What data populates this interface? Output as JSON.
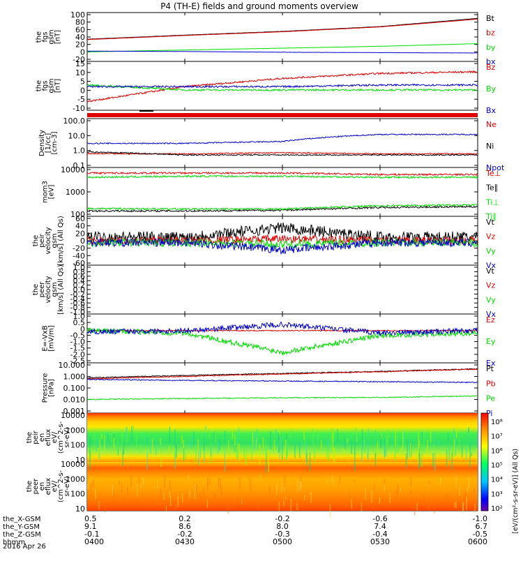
{
  "title": "P4 (TH-E) fields and ground moments overview",
  "colors": {
    "black": "#000000",
    "red": "#e00000",
    "green": "#00dd00",
    "blue": "#0000cc"
  },
  "panels": [
    {
      "id": "fgs-bt",
      "ylabel": [
        "the",
        "fgs",
        "gsm",
        "[nT]"
      ],
      "ticks": [
        "100",
        "80",
        "60",
        "40",
        "20",
        "0",
        "-20"
      ],
      "legend": [
        {
          "label": "Bt",
          "color": "#000000"
        },
        {
          "label": "bz",
          "color": "#e00000"
        },
        {
          "label": "by",
          "color": "#00dd00"
        },
        {
          "label": "bx",
          "color": "#0000cc"
        }
      ]
    },
    {
      "id": "fgs-b",
      "ylabel": [
        "the",
        "fgs",
        "gsm",
        "[nT]"
      ],
      "ticks": [
        "15",
        "10",
        "5",
        "0",
        "-5",
        "-10"
      ],
      "legend": [
        {
          "label": "Bz",
          "color": "#e00000"
        },
        {
          "label": "By",
          "color": "#00dd00"
        },
        {
          "label": "Bx",
          "color": "#0000cc"
        }
      ]
    },
    {
      "id": "density",
      "ylabel": [
        "Density",
        "[1/cc]",
        "[cm-3]"
      ],
      "ticks": [
        "100.0",
        "10.0",
        "1.0",
        "0.1"
      ],
      "legend": [
        {
          "label": "Ne",
          "color": "#e00000"
        },
        {
          "label": "Ni",
          "color": "#000000"
        },
        {
          "label": "Npot",
          "color": "#0000cc"
        }
      ]
    },
    {
      "id": "temp",
      "ylabel": [
        "mom3",
        "[eV]"
      ],
      "ticks": [
        "10000",
        "1000",
        "100"
      ],
      "legend": [
        {
          "label": "Te⊥",
          "color": "#e00000"
        },
        {
          "label": "Te∥",
          "color": "#000000"
        },
        {
          "label": "Ti⊥",
          "color": "#00dd00"
        },
        {
          "label": "Ti∥",
          "color": "#00dd00"
        }
      ]
    },
    {
      "id": "peir-vel",
      "ylabel": [
        "the",
        "peir",
        "velocity",
        "gsm",
        "[km/s] (All Qs)"
      ],
      "ticks": [
        "60",
        "40",
        "20",
        "0",
        "-20",
        "-40",
        "-60"
      ],
      "legend": [
        {
          "label": "Vt",
          "color": "#000000"
        },
        {
          "label": "Vz",
          "color": "#e00000"
        },
        {
          "label": "Vy",
          "color": "#00dd00"
        },
        {
          "label": "Vx",
          "color": "#0000cc"
        }
      ]
    },
    {
      "id": "peer-vel",
      "ylabel": [
        "the",
        "peer",
        "velocity",
        "gsm",
        "[km/s] (All Qs)"
      ],
      "ticks": [
        "1.0",
        "0.8",
        "0.6",
        "0.4",
        "0.2",
        "0.0",
        "-0.2",
        "-0.4",
        "-0.6",
        "-0.8",
        "-1.0"
      ],
      "legend": [
        {
          "label": "Vt",
          "color": "#000000"
        },
        {
          "label": "Vz",
          "color": "#e00000"
        },
        {
          "label": "Vy",
          "color": "#00dd00"
        },
        {
          "label": "Vx",
          "color": "#0000cc"
        }
      ]
    },
    {
      "id": "efield",
      "ylabel": [
        "E=-VxB",
        "[mV/m]"
      ],
      "ticks": [
        "1.0",
        "0.5",
        "0",
        "-0.5",
        "-1.0",
        "-1.5",
        "-2.0",
        "-2.5"
      ],
      "legend": [
        {
          "label": "Ez",
          "color": "#e00000"
        },
        {
          "label": "Ey",
          "color": "#00dd00"
        },
        {
          "label": "Ex",
          "color": "#0000cc"
        }
      ]
    },
    {
      "id": "pressure",
      "ylabel": [
        "Pressure",
        "[nPa]"
      ],
      "ticks": [
        "10.000",
        "1.000",
        "0.100",
        "0.010",
        "0.001"
      ],
      "legend": [
        {
          "label": "Pt",
          "color": "#000000"
        },
        {
          "label": "Pb",
          "color": "#e00000"
        },
        {
          "label": "Pe",
          "color": "#00dd00"
        },
        {
          "label": "Pi",
          "color": "#0000cc"
        }
      ]
    },
    {
      "id": "peir-en",
      "ylabel": [
        "the",
        "peir",
        "en",
        "eflux",
        "eV/",
        "(cm^2-s-",
        "sr-eV)"
      ],
      "ticks": [
        "10000",
        "1000",
        "100",
        "10"
      ],
      "legend": []
    },
    {
      "id": "peer-en",
      "ylabel": [
        "the",
        "peer",
        "en",
        "eflux",
        "eV/",
        "(cm^2-s-",
        "sr-eV)"
      ],
      "ticks": [
        "10000",
        "1000",
        "100",
        "10"
      ],
      "legend": []
    }
  ],
  "colorbar": {
    "ticks": [
      "10⁸",
      "10⁷",
      "10⁶",
      "10⁵",
      "10⁴",
      "10³",
      "10²"
    ],
    "label": "[eV/(cm²-s-sr-eV)] (All Qs)"
  },
  "xaxis": {
    "rows": [
      {
        "label": "the_X-GSM",
        "values": [
          "0.5",
          "0.2",
          "-0.2",
          "-0.6",
          "-1.0"
        ]
      },
      {
        "label": "the_Y-GSM",
        "values": [
          "9.1",
          "8.6",
          "8.0",
          "7.4",
          "6.7"
        ]
      },
      {
        "label": "the_Z-GSM",
        "values": [
          "-0.1",
          "-0.2",
          "-0.3",
          "-0.4",
          "-0.5"
        ]
      },
      {
        "label": "hhmm",
        "values": [
          "0400",
          "0430",
          "0500",
          "0530",
          "0600"
        ]
      }
    ],
    "date": "2016 Apr 26"
  },
  "chart_data": {
    "type": "line",
    "title": "P4 (TH-E) fields and ground moments overview",
    "x_time": [
      "0400",
      "0430",
      "0500",
      "0530",
      "0600"
    ],
    "panels": [
      {
        "name": "the fgs gsm [nT]",
        "ylim": [
          -20,
          100
        ],
        "series": [
          {
            "name": "Bt",
            "values": [
              34,
              45,
              55,
              68,
              90
            ]
          },
          {
            "name": "bz",
            "values": [
              33,
              44,
              54,
              67,
              88
            ]
          },
          {
            "name": "by",
            "values": [
              0,
              5,
              10,
              15,
              22
            ]
          },
          {
            "name": "bx",
            "values": [
              2,
              1,
              -1,
              -2,
              -3
            ]
          }
        ]
      },
      {
        "name": "the fgs gsm [nT] (components)",
        "ylim": [
          -12,
          15
        ],
        "series": [
          {
            "name": "Bz",
            "values": [
              -8,
              1,
              6,
              9,
              10
            ]
          },
          {
            "name": "By",
            "values": [
              2,
              -1,
              -1,
              -1,
              -1
            ]
          },
          {
            "name": "Bx",
            "values": [
              1,
              1,
              1,
              2,
              2
            ]
          }
        ]
      },
      {
        "name": "Density [cm-3]",
        "scale": "log",
        "ylim": [
          0.1,
          100
        ],
        "series": [
          {
            "name": "Ne",
            "values": [
              0.6,
              0.6,
              0.7,
              0.6,
              0.6
            ]
          },
          {
            "name": "Ni",
            "values": [
              0.8,
              0.5,
              0.5,
              0.5,
              0.5
            ]
          },
          {
            "name": "Npot",
            "values": [
              3,
              3,
              4,
              12,
              12
            ]
          }
        ]
      },
      {
        "name": "mom3 [eV]",
        "scale": "log",
        "ylim": [
          100,
          10000
        ],
        "series": [
          {
            "name": "Te⊥",
            "values": [
              7000,
              7000,
              7000,
              6000,
              6000
            ]
          },
          {
            "name": "Te∥",
            "values": [
              140,
              140,
              150,
              200,
              220
            ]
          },
          {
            "name": "Ti⊥",
            "values": [
              4500,
              5000,
              5000,
              4500,
              4500
            ]
          },
          {
            "name": "Ti∥",
            "values": [
              180,
              170,
              170,
              240,
              260
            ]
          }
        ]
      },
      {
        "name": "the peir velocity gsm [km/s] (All Qs)",
        "ylim": [
          -60,
          60
        ],
        "series": [
          {
            "name": "Vt",
            "values": [
              10,
              10,
              35,
              10,
              10
            ]
          },
          {
            "name": "Vz",
            "values": [
              0,
              0,
              5,
              0,
              0
            ]
          },
          {
            "name": "Vy",
            "values": [
              -5,
              -5,
              -10,
              -5,
              -5
            ]
          },
          {
            "name": "Vx",
            "values": [
              -5,
              -5,
              -25,
              -5,
              -5
            ]
          }
        ]
      },
      {
        "name": "the peer velocity gsm [km/s] (All Qs)",
        "ylim": [
          -1,
          1
        ],
        "series": []
      },
      {
        "name": "E=-VxB [mV/m]",
        "ylim": [
          -2.5,
          1.2
        ],
        "series": [
          {
            "name": "Ez",
            "values": [
              0,
              0,
              0,
              0,
              0
            ]
          },
          {
            "name": "Ey",
            "values": [
              0,
              -0.2,
              -1.8,
              -0.4,
              -0.2
            ]
          },
          {
            "name": "Ex",
            "values": [
              -0.1,
              0,
              0.5,
              -0.2,
              0
            ]
          }
        ]
      },
      {
        "name": "Pressure [nPa]",
        "scale": "log",
        "ylim": [
          0.001,
          10
        ],
        "series": [
          {
            "name": "Pt",
            "values": [
              0.75,
              1.2,
              1.8,
              2.7,
              4.5
            ]
          },
          {
            "name": "Pb",
            "values": [
              0.6,
              1.0,
              1.6,
              2.5,
              4.2
            ]
          },
          {
            "name": "Pe",
            "values": [
              0.01,
              0.012,
              0.014,
              0.015,
              0.02
            ]
          },
          {
            "name": "Pi",
            "values": [
              0.55,
              0.45,
              0.4,
              0.35,
              0.3
            ]
          }
        ]
      }
    ]
  }
}
